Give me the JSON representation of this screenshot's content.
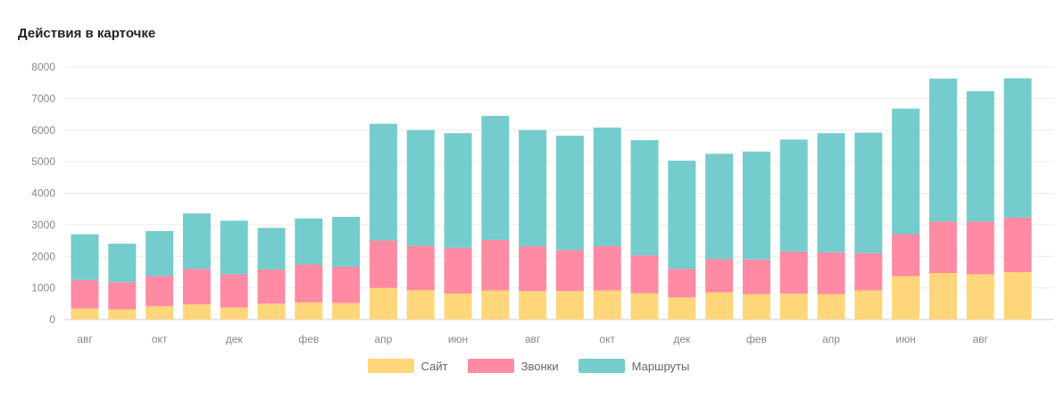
{
  "card": {
    "title": "Действия в карточке"
  },
  "chart_data": {
    "type": "bar",
    "stacked": true,
    "title": "Действия в карточке",
    "xlabel": "",
    "ylabel": "",
    "ylim": [
      0,
      8000
    ],
    "yticks": [
      0,
      1000,
      2000,
      3000,
      4000,
      5000,
      6000,
      7000,
      8000
    ],
    "x_tick_labels": [
      "авг",
      "окт",
      "дек",
      "фев",
      "апр",
      "июн",
      "авг",
      "окт",
      "дек",
      "фев",
      "апр",
      "июн",
      "авг"
    ],
    "grid": true,
    "legend": "bottom",
    "series": [
      {
        "name": "Сайт",
        "color": "#FFD77A",
        "values": [
          350,
          320,
          420,
          480,
          380,
          500,
          540,
          520,
          1000,
          930,
          820,
          920,
          900,
          900,
          920,
          830,
          700,
          860,
          800,
          820,
          800,
          920,
          1370,
          1470,
          1430,
          1500
        ]
      },
      {
        "name": "Звонки",
        "color": "#FF8AA3",
        "values": [
          900,
          860,
          960,
          1120,
          1050,
          1080,
          1200,
          1150,
          1500,
          1400,
          1450,
          1600,
          1420,
          1300,
          1400,
          1200,
          900,
          1050,
          1100,
          1330,
          1330,
          1180,
          1330,
          1630,
          1670,
          1730
        ]
      },
      {
        "name": "Маршруты",
        "color": "#74CCCC",
        "values": [
          1450,
          1220,
          1420,
          1760,
          1700,
          1320,
          1460,
          1580,
          3700,
          3670,
          3630,
          3930,
          3680,
          3620,
          3760,
          3650,
          3430,
          3340,
          3420,
          3550,
          3770,
          3820,
          3980,
          4530,
          4130,
          4410
        ]
      }
    ]
  }
}
